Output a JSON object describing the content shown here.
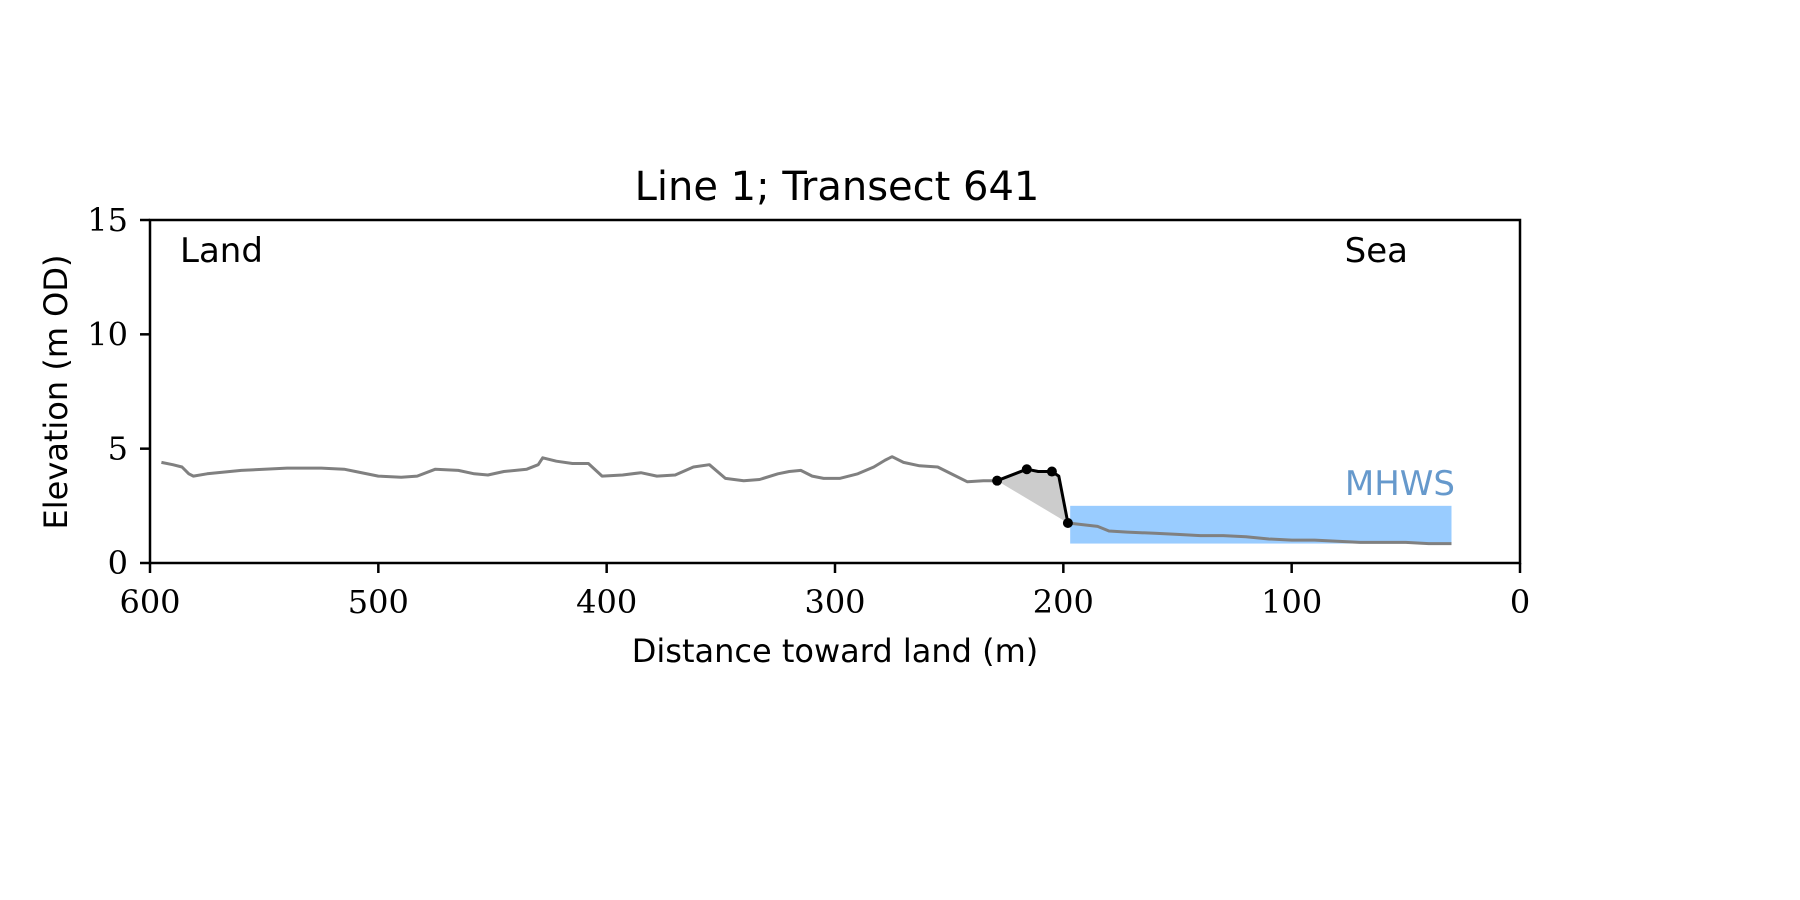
{
  "chart_data": {
    "type": "line",
    "title": "Line 1; Transect 641",
    "xlabel": "Distance toward land (m)",
    "ylabel": "Elevation (m OD)",
    "xlim": [
      600,
      0
    ],
    "ylim": [
      0,
      15
    ],
    "x_ticks": [
      600,
      500,
      400,
      300,
      200,
      100,
      0
    ],
    "y_ticks": [
      0,
      5,
      10,
      15
    ],
    "grid": false,
    "annotations": {
      "left": "Land",
      "right": "Sea",
      "mhws_label": "MHWS"
    },
    "colors": {
      "profile": "#808080",
      "feature": "#000000",
      "fill": "#cccccc",
      "mhws": "#99ccff",
      "mhws_label": "#6699cc"
    },
    "mhws": {
      "elevation": 2.5,
      "x_start": 197,
      "x_end": 30
    },
    "series": [
      {
        "values": [
          [
            595,
            4.4
          ],
          [
            590,
            4.3
          ],
          [
            586,
            4.2
          ],
          [
            583,
            3.9
          ],
          [
            581,
            3.8
          ],
          [
            575,
            3.9
          ],
          [
            560,
            4.05
          ],
          [
            540,
            4.15
          ],
          [
            525,
            4.15
          ],
          [
            515,
            4.1
          ],
          [
            510,
            4.0
          ],
          [
            500,
            3.8
          ],
          [
            490,
            3.75
          ],
          [
            483,
            3.8
          ],
          [
            475,
            4.1
          ],
          [
            465,
            4.05
          ],
          [
            458,
            3.9
          ],
          [
            452,
            3.85
          ],
          [
            445,
            4.0
          ],
          [
            435,
            4.1
          ],
          [
            430,
            4.3
          ],
          [
            428,
            4.6
          ],
          [
            422,
            4.45
          ],
          [
            415,
            4.35
          ],
          [
            408,
            4.35
          ],
          [
            402,
            3.8
          ],
          [
            393,
            3.85
          ],
          [
            385,
            3.95
          ],
          [
            378,
            3.8
          ],
          [
            370,
            3.85
          ],
          [
            362,
            4.2
          ],
          [
            355,
            4.3
          ],
          [
            348,
            3.7
          ],
          [
            340,
            3.6
          ],
          [
            333,
            3.65
          ],
          [
            325,
            3.9
          ],
          [
            320,
            4.0
          ],
          [
            315,
            4.05
          ],
          [
            310,
            3.8
          ],
          [
            305,
            3.7
          ],
          [
            298,
            3.7
          ],
          [
            290,
            3.9
          ],
          [
            283,
            4.2
          ],
          [
            278,
            4.5
          ],
          [
            275,
            4.65
          ],
          [
            270,
            4.4
          ],
          [
            263,
            4.25
          ],
          [
            255,
            4.2
          ],
          [
            248,
            3.85
          ],
          [
            242,
            3.55
          ],
          [
            235,
            3.6
          ],
          [
            229,
            3.6
          ]
        ]
      },
      {
        "values": [
          [
            229,
            3.6
          ],
          [
            216,
            4.1
          ],
          [
            211,
            4.0
          ],
          [
            205,
            4.0
          ],
          [
            202,
            3.8
          ],
          [
            198,
            1.75
          ]
        ]
      },
      {
        "values": [
          [
            198,
            1.75
          ],
          [
            185,
            1.6
          ],
          [
            180,
            1.4
          ],
          [
            172,
            1.35
          ],
          [
            160,
            1.3
          ],
          [
            150,
            1.25
          ],
          [
            140,
            1.2
          ],
          [
            130,
            1.2
          ],
          [
            120,
            1.15
          ],
          [
            110,
            1.05
          ],
          [
            100,
            1.0
          ],
          [
            90,
            1.0
          ],
          [
            80,
            0.95
          ],
          [
            70,
            0.9
          ],
          [
            60,
            0.9
          ],
          [
            50,
            0.9
          ],
          [
            40,
            0.85
          ],
          [
            30,
            0.85
          ]
        ]
      }
    ]
  }
}
